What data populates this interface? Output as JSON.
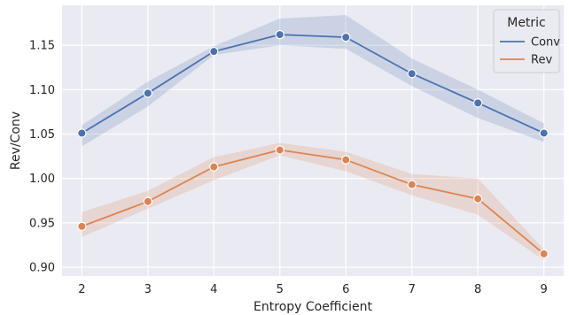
{
  "chart_data": {
    "type": "line",
    "xlabel": "Entropy Coefficient",
    "ylabel": "Rev/Conv",
    "x": [
      2,
      3,
      4,
      5,
      6,
      7,
      8,
      9
    ],
    "xlim": [
      1.7,
      9.3
    ],
    "ylim": [
      0.89,
      1.195
    ],
    "xticks": [
      "2",
      "3",
      "4",
      "5",
      "6",
      "7",
      "8",
      "9"
    ],
    "yticks": [
      0.9,
      0.95,
      1.0,
      1.05,
      1.1,
      1.15
    ],
    "ytick_labels": [
      "0.90",
      "0.95",
      "1.00",
      "1.05",
      "1.10",
      "1.15"
    ],
    "grid": true,
    "legend": {
      "title": "Metric",
      "placement": "top-right"
    },
    "series": [
      {
        "name": "Conv",
        "color": "#4c72b0",
        "values": [
          1.051,
          1.096,
          1.143,
          1.162,
          1.159,
          1.118,
          1.085,
          1.051
        ],
        "lower": [
          1.036,
          1.081,
          1.139,
          1.15,
          1.146,
          1.104,
          1.068,
          1.041
        ],
        "upper": [
          1.06,
          1.109,
          1.149,
          1.18,
          1.184,
          1.135,
          1.1,
          1.062
        ]
      },
      {
        "name": "Rev",
        "color": "#dd8452",
        "values": [
          0.946,
          0.974,
          1.013,
          1.032,
          1.021,
          0.993,
          0.977,
          0.915
        ],
        "lower": [
          0.934,
          0.966,
          0.998,
          1.026,
          1.008,
          0.981,
          0.959,
          0.908
        ],
        "upper": [
          0.962,
          0.986,
          1.024,
          1.04,
          1.03,
          1.005,
          1.0,
          0.92
        ]
      }
    ]
  }
}
